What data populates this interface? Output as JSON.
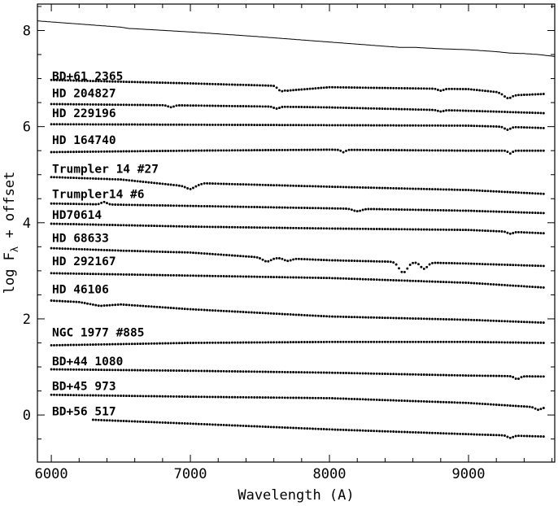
{
  "chart_data": {
    "type": "scatter",
    "xlabel": "Wavelength (A)",
    "ylabel_main": "log F",
    "ylabel_sub": "λ",
    "ylabel_tail": " + offset",
    "xlim": [
      5900,
      9620
    ],
    "ylim": [
      -0.98,
      8.55
    ],
    "x_ticks": [
      6000,
      7000,
      8000,
      9000
    ],
    "x_tick_labels": [
      "6000",
      "7000",
      "8000",
      "9000"
    ],
    "y_ticks": [
      0,
      2,
      4,
      6,
      8
    ],
    "y_tick_labels": [
      "0",
      "2",
      "4",
      "6",
      "8"
    ],
    "reference_curve": {
      "x": [
        5900,
        6500,
        6560,
        6580,
        7000,
        7500,
        8000,
        8500,
        8600,
        8800,
        9000,
        9200,
        9300,
        9400,
        9500,
        9620
      ],
      "y": [
        8.2,
        8.07,
        8.04,
        8.04,
        7.97,
        7.87,
        7.76,
        7.65,
        7.65,
        7.62,
        7.6,
        7.56,
        7.53,
        7.52,
        7.5,
        7.46
      ]
    },
    "series": [
      {
        "name": "BD+61 2365",
        "label_y": 7.05,
        "x_start": 6000,
        "x_end": 9550,
        "step": 20,
        "x": [
          6000,
          7000,
          7600,
          7700,
          8000,
          9000,
          9200,
          9300,
          9550
        ],
        "y": [
          6.97,
          6.9,
          6.85,
          6.75,
          6.82,
          6.78,
          6.72,
          6.65,
          6.68
        ],
        "features": [
          [
            7650,
            -0.06,
            20
          ],
          [
            8800,
            -0.04,
            20
          ],
          [
            9280,
            -0.07,
            25
          ]
        ]
      },
      {
        "name": "HD 204827",
        "label_y": 6.7,
        "x_start": 6000,
        "x_end": 9550,
        "step": 20,
        "x": [
          6000,
          7000,
          8000,
          9000,
          9550
        ],
        "y": [
          6.47,
          6.44,
          6.4,
          6.33,
          6.28
        ],
        "features": [
          [
            6860,
            -0.04,
            20
          ],
          [
            7620,
            -0.04,
            20
          ],
          [
            8800,
            -0.03,
            20
          ]
        ]
      },
      {
        "name": "HD 229196",
        "label_y": 6.28,
        "x_start": 6000,
        "x_end": 9550,
        "step": 20,
        "x": [
          6000,
          7000,
          8000,
          9000,
          9550
        ],
        "y": [
          6.05,
          6.04,
          6.03,
          6.02,
          5.97
        ],
        "features": [
          [
            9280,
            -0.06,
            20
          ]
        ]
      },
      {
        "name": "HD 164740",
        "label_y": 5.72,
        "x_start": 6000,
        "x_end": 9550,
        "step": 20,
        "x": [
          6000,
          7000,
          8000,
          9000,
          9550
        ],
        "y": [
          5.47,
          5.5,
          5.52,
          5.5,
          5.5
        ],
        "features": [
          [
            8100,
            -0.05,
            15
          ],
          [
            9300,
            -0.06,
            15
          ]
        ]
      },
      {
        "name": "Trumpler 14 #27",
        "label_y": 5.12,
        "x_start": 6000,
        "x_end": 9550,
        "step": 20,
        "x": [
          6000,
          6500,
          7000,
          7100,
          8000,
          9000,
          9550
        ],
        "y": [
          4.95,
          4.9,
          4.75,
          4.82,
          4.75,
          4.68,
          4.6
        ],
        "features": [
          [
            7000,
            -0.05,
            30
          ]
        ]
      },
      {
        "name": "Trumpler14 #6",
        "label_y": 4.6,
        "x_start": 6000,
        "x_end": 9550,
        "step": 20,
        "x": [
          6000,
          7000,
          8000,
          9000,
          9550
        ],
        "y": [
          4.4,
          4.35,
          4.3,
          4.25,
          4.2
        ],
        "features": [
          [
            6380,
            0.05,
            20
          ],
          [
            8200,
            -0.05,
            30
          ]
        ]
      },
      {
        "name": "HD70614",
        "label_y": 4.17,
        "x_start": 6000,
        "x_end": 9550,
        "step": 20,
        "x": [
          6000,
          7000,
          8000,
          9000,
          9550
        ],
        "y": [
          3.98,
          3.92,
          3.88,
          3.85,
          3.78
        ],
        "features": [
          [
            9300,
            -0.04,
            20
          ]
        ]
      },
      {
        "name": "HD 68633",
        "label_y": 3.68,
        "x_start": 6000,
        "x_end": 9550,
        "step": 20,
        "x": [
          6000,
          6500,
          7000,
          7500,
          8000,
          9000,
          9550
        ],
        "y": [
          3.47,
          3.42,
          3.38,
          3.28,
          3.22,
          3.15,
          3.1
        ],
        "features": [
          [
            7550,
            -0.08,
            30
          ],
          [
            7700,
            -0.05,
            25
          ],
          [
            8530,
            -0.22,
            30
          ],
          [
            8680,
            -0.13,
            25
          ]
        ]
      },
      {
        "name": "HD 292167",
        "label_y": 3.2,
        "x_start": 6000,
        "x_end": 9550,
        "step": 20,
        "x": [
          6000,
          7000,
          8000,
          9000,
          9550
        ],
        "y": [
          2.95,
          2.9,
          2.85,
          2.75,
          2.65
        ],
        "features": []
      },
      {
        "name": "HD 46106",
        "label_y": 2.62,
        "x_start": 6000,
        "x_end": 9550,
        "step": 20,
        "x": [
          6000,
          6200,
          6350,
          6500,
          7000,
          8000,
          9000,
          9550
        ],
        "y": [
          2.38,
          2.35,
          2.27,
          2.3,
          2.2,
          2.05,
          1.98,
          1.92
        ],
        "features": []
      },
      {
        "name": "NGC 1977 #885",
        "label_y": 1.72,
        "x_start": 6000,
        "x_end": 9550,
        "step": 20,
        "x": [
          6000,
          7000,
          8000,
          9000,
          9550
        ],
        "y": [
          1.45,
          1.5,
          1.52,
          1.52,
          1.5
        ],
        "features": []
      },
      {
        "name": "BD+44 1080",
        "label_y": 1.12,
        "x_start": 6000,
        "x_end": 9550,
        "step": 20,
        "x": [
          6000,
          7000,
          8000,
          9000,
          9550
        ],
        "y": [
          0.95,
          0.92,
          0.88,
          0.82,
          0.8
        ],
        "features": [
          [
            9350,
            -0.06,
            20
          ]
        ]
      },
      {
        "name": "BD+45 973",
        "label_y": 0.6,
        "x_start": 6000,
        "x_end": 9550,
        "step": 20,
        "x": [
          6000,
          7000,
          8000,
          9000,
          9550
        ],
        "y": [
          0.42,
          0.38,
          0.35,
          0.25,
          0.15
        ],
        "features": [
          [
            9500,
            -0.05,
            20
          ]
        ]
      },
      {
        "name": "BD+56 517",
        "label_y": 0.08,
        "x_start": 6300,
        "x_end": 9550,
        "step": 20,
        "x": [
          6300,
          7000,
          8000,
          9000,
          9550
        ],
        "y": [
          -0.1,
          -0.18,
          -0.3,
          -0.4,
          -0.45
        ],
        "features": [
          [
            9300,
            -0.05,
            20
          ]
        ]
      }
    ],
    "grid": false,
    "legend": "none",
    "marker_color": "#000000"
  }
}
